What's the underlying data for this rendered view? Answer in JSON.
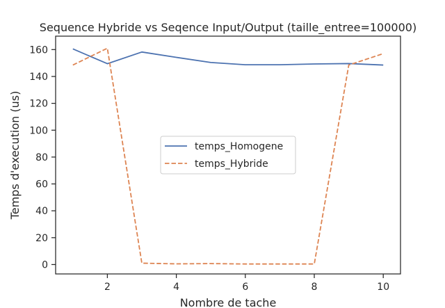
{
  "chart_data": {
    "type": "line",
    "title": "Sequence Hybride vs Seqence Input/Output (taille_entree=100000)",
    "xlabel": "Nombre de tache",
    "ylabel": "Temps d'execution (us)",
    "x": [
      1,
      2,
      3,
      4,
      5,
      6,
      7,
      8,
      9,
      10
    ],
    "xlim": [
      0.5,
      10.5
    ],
    "ylim": [
      -7,
      170
    ],
    "xticks": [
      2,
      4,
      6,
      8,
      10
    ],
    "yticks": [
      0,
      20,
      40,
      60,
      80,
      100,
      120,
      140,
      160
    ],
    "grid": false,
    "legend_position": "center",
    "series": [
      {
        "name": "temps_Homogene",
        "color": "#4c72b0",
        "dash": "solid",
        "values": [
          160.5,
          149.5,
          158.2,
          154.2,
          150.4,
          148.7,
          148.7,
          149.3,
          149.6,
          148.5
        ]
      },
      {
        "name": "temps_Hybride",
        "color": "#dd8452",
        "dash": "dashed",
        "values": [
          148.5,
          161.0,
          1.0,
          0.5,
          0.7,
          0.4,
          0.4,
          0.4,
          148.5,
          157.0
        ]
      }
    ]
  }
}
